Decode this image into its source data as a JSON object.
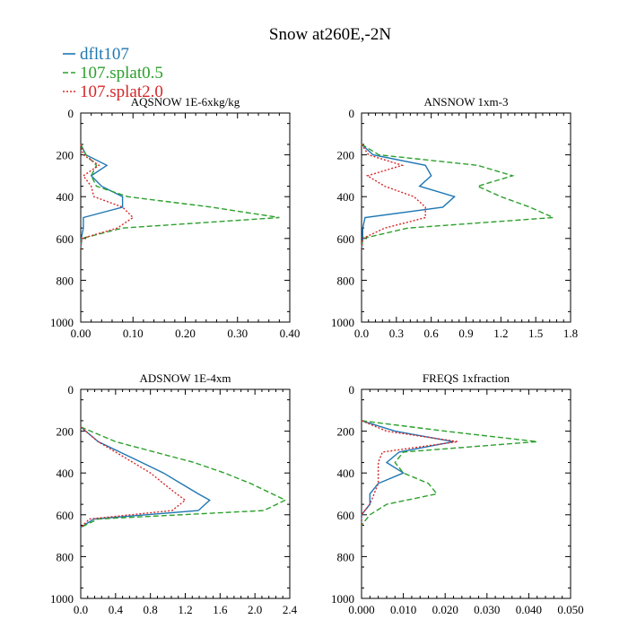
{
  "figure": {
    "title": "Snow at260E,-2N"
  },
  "legend": {
    "entries": [
      {
        "label": "dflt107",
        "color": "#1f77b4",
        "dash": "solid"
      },
      {
        "label": "107.splat0.5",
        "color": "#2ca02c",
        "dash": "dashed"
      },
      {
        "label": "107.splat2.0",
        "color": "#d62728",
        "dash": "dotted"
      }
    ],
    "placement": "top-left"
  },
  "chart_data": [
    {
      "type": "line",
      "title": "AQSNOW  1E-6xkg/kg",
      "xlim": [
        0,
        0.4
      ],
      "ylim": [
        1000,
        0
      ],
      "xticks": [
        0,
        0.1,
        0.2,
        0.3,
        0.4
      ],
      "xtick_labels": [
        "0.00",
        "0.10",
        "0.20",
        "0.30",
        "0.40"
      ],
      "yticks": [
        0,
        200,
        400,
        600,
        800,
        1000
      ],
      "ytick_labels": [
        "0",
        "200",
        "400",
        "600",
        "800",
        "1000"
      ],
      "y": [
        150,
        200,
        250,
        300,
        350,
        400,
        450,
        500,
        550,
        600,
        650
      ],
      "series": [
        {
          "name": "dflt107",
          "values": [
            0.0,
            0.01,
            0.05,
            0.02,
            0.04,
            0.08,
            0.08,
            0.005,
            0.005,
            0.001,
            0.0
          ]
        },
        {
          "name": "107.splat0.5",
          "values": [
            0.0,
            0.01,
            0.03,
            0.02,
            0.03,
            0.09,
            0.25,
            0.38,
            0.08,
            0.002,
            0.0
          ]
        },
        {
          "name": "107.splat2.0",
          "values": [
            0.0,
            0.005,
            0.035,
            0.005,
            0.02,
            0.025,
            0.08,
            0.1,
            0.07,
            0.002,
            0.0
          ]
        }
      ]
    },
    {
      "type": "line",
      "title": "ANSNOW  1xm-3",
      "xlim": [
        0,
        1.8
      ],
      "ylim": [
        1000,
        0
      ],
      "xticks": [
        0,
        0.3,
        0.6,
        0.9,
        1.2,
        1.5,
        1.8
      ],
      "xtick_labels": [
        "0.0",
        "0.3",
        "0.6",
        "0.9",
        "1.2",
        "1.5",
        "1.8"
      ],
      "yticks": [
        0,
        200,
        400,
        600,
        800,
        1000
      ],
      "ytick_labels": [
        "0",
        "200",
        "400",
        "600",
        "800",
        "1000"
      ],
      "y": [
        150,
        200,
        250,
        300,
        350,
        400,
        450,
        500,
        550,
        600,
        650
      ],
      "series": [
        {
          "name": "dflt107",
          "values": [
            0.0,
            0.1,
            0.55,
            0.6,
            0.5,
            0.8,
            0.7,
            0.03,
            0.01,
            0.01,
            0.0
          ]
        },
        {
          "name": "107.splat0.5",
          "values": [
            0.0,
            0.15,
            1.0,
            1.3,
            1.0,
            1.2,
            1.45,
            1.65,
            0.4,
            0.01,
            0.0
          ]
        },
        {
          "name": "107.splat2.0",
          "values": [
            0.0,
            0.06,
            0.35,
            0.05,
            0.2,
            0.45,
            0.55,
            0.55,
            0.2,
            0.01,
            0.0
          ]
        }
      ]
    },
    {
      "type": "line",
      "title": "ADSNOW  1E-4xm",
      "xlim": [
        0,
        2.4
      ],
      "ylim": [
        1000,
        0
      ],
      "xticks": [
        0,
        0.4,
        0.8,
        1.2,
        1.6,
        2.0,
        2.4
      ],
      "xtick_labels": [
        "0.0",
        "0.4",
        "0.8",
        "1.2",
        "1.6",
        "2.0",
        "2.4"
      ],
      "yticks": [
        0,
        200,
        400,
        600,
        800,
        1000
      ],
      "ytick_labels": [
        "0",
        "200",
        "400",
        "600",
        "800",
        "1000"
      ],
      "y": [
        180,
        250,
        300,
        350,
        400,
        450,
        500,
        530,
        580,
        620,
        660
      ],
      "series": [
        {
          "name": "dflt107",
          "values": [
            0.0,
            0.2,
            0.45,
            0.7,
            0.95,
            1.15,
            1.35,
            1.48,
            1.35,
            0.15,
            0.0
          ]
        },
        {
          "name": "107.splat0.5",
          "values": [
            0.0,
            0.4,
            0.85,
            1.3,
            1.65,
            1.95,
            2.2,
            2.35,
            2.1,
            0.2,
            0.0
          ]
        },
        {
          "name": "107.splat2.0",
          "values": [
            0.0,
            0.2,
            0.4,
            0.6,
            0.8,
            0.95,
            1.1,
            1.2,
            1.05,
            0.1,
            0.0
          ]
        }
      ]
    },
    {
      "type": "line",
      "title": "FREQS  1xfraction",
      "xlim": [
        0,
        0.05
      ],
      "ylim": [
        1000,
        0
      ],
      "xticks": [
        0,
        0.01,
        0.02,
        0.03,
        0.04,
        0.05
      ],
      "xtick_labels": [
        "0.000",
        "0.010",
        "0.020",
        "0.030",
        "0.040",
        "0.050"
      ],
      "yticks": [
        0,
        200,
        400,
        600,
        800,
        1000
      ],
      "ytick_labels": [
        "0",
        "200",
        "400",
        "600",
        "800",
        "1000"
      ],
      "y": [
        150,
        200,
        250,
        300,
        350,
        400,
        450,
        500,
        550,
        600,
        650
      ],
      "series": [
        {
          "name": "dflt107",
          "values": [
            0.0,
            0.008,
            0.022,
            0.009,
            0.006,
            0.01,
            0.004,
            0.002,
            0.002,
            0.0,
            0.0
          ]
        },
        {
          "name": "107.splat0.5",
          "values": [
            0.0,
            0.02,
            0.042,
            0.01,
            0.008,
            0.01,
            0.016,
            0.018,
            0.006,
            0.002,
            0.0
          ]
        },
        {
          "name": "107.splat2.0",
          "values": [
            0.0,
            0.006,
            0.023,
            0.005,
            0.004,
            0.004,
            0.004,
            0.003,
            0.002,
            0.0,
            0.0
          ]
        }
      ]
    }
  ]
}
